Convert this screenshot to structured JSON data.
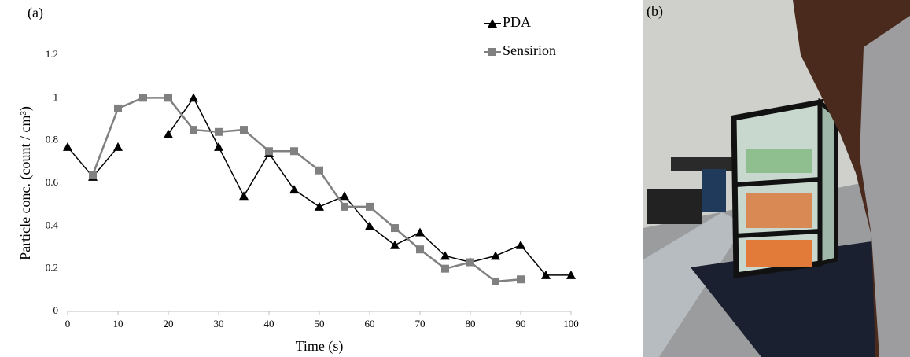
{
  "panel_a_label": "(a)",
  "panel_b_label": "(b)",
  "chart_data": {
    "type": "line",
    "x_label": "Time (s)",
    "y_label": "Particle conc. (count / cm³)",
    "x": [
      0,
      5,
      10,
      15,
      20,
      25,
      30,
      35,
      40,
      45,
      50,
      55,
      60,
      65,
      70,
      75,
      80,
      85,
      90,
      95,
      100
    ],
    "series": [
      {
        "name": "PDA",
        "color": "#000000",
        "marker": "triangle",
        "values": [
          0.77,
          0.63,
          0.77,
          null,
          0.83,
          1.0,
          0.77,
          0.54,
          0.74,
          0.57,
          0.49,
          0.54,
          0.4,
          0.31,
          0.37,
          0.26,
          0.23,
          0.26,
          0.31,
          0.17,
          0.17
        ]
      },
      {
        "name": "Sensirion",
        "color": "#808080",
        "marker": "square",
        "values": [
          null,
          0.64,
          0.95,
          1.0,
          1.0,
          0.85,
          0.84,
          0.85,
          0.75,
          0.75,
          0.66,
          0.49,
          0.49,
          0.39,
          0.29,
          0.2,
          0.23,
          0.14,
          0.15,
          null,
          null
        ]
      }
    ],
    "xlim": [
      0,
      100
    ],
    "xticks": [
      0,
      10,
      20,
      30,
      40,
      50,
      60,
      70,
      80,
      90,
      100
    ],
    "ylim": [
      0,
      1.2
    ],
    "yticks": [
      0,
      0.2,
      0.4,
      0.6,
      0.8,
      1,
      1.2
    ],
    "legend": "top-right"
  }
}
